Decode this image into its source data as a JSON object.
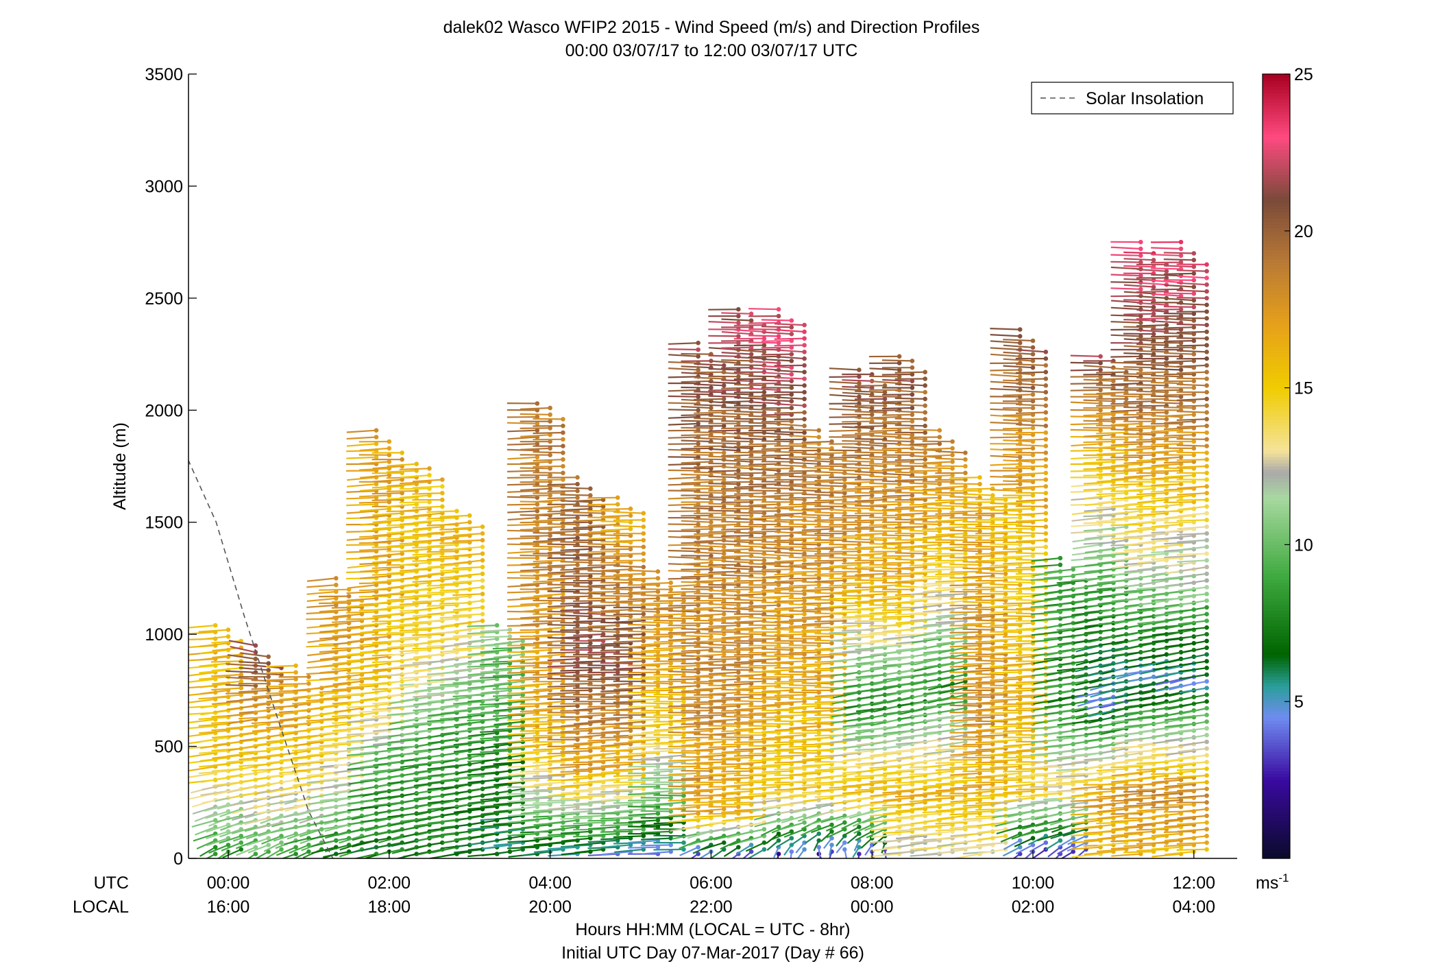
{
  "chart_data": {
    "type": "wind_barb_profile",
    "title": "dalek02 Wasco WFIP2 2015 - Wind Speed (m/s) and Direction Profiles",
    "subtitle": "00:00 03/07/17 to 12:00 03/07/17  UTC",
    "ylabel": "Altitude (m)",
    "xlabel": "Hours HH:MM  (LOCAL = UTC - 8hr)",
    "xlabel2": "Initial UTC Day 07-Mar-2017 (Day # 66)",
    "xlim_hours": [
      -0.5,
      12.1
    ],
    "ylim": [
      0,
      3500
    ],
    "yticks": [
      0,
      500,
      1000,
      1500,
      2000,
      2500,
      3000,
      3500
    ],
    "xticks_hours": [
      0,
      2,
      4,
      6,
      8,
      10,
      12
    ],
    "xtick_labels_utc": [
      "00:00",
      "02:00",
      "04:00",
      "06:00",
      "08:00",
      "10:00",
      "12:00"
    ],
    "xtick_labels_local": [
      "16:00",
      "18:00",
      "20:00",
      "22:00",
      "00:00",
      "02:00",
      "04:00"
    ],
    "row_label_utc": "UTC",
    "row_label_local": "LOCAL",
    "legend": {
      "entries": [
        "Solar Insolation"
      ],
      "placement": "top-right"
    },
    "solar_insolation": {
      "hours": [
        -0.5,
        -0.15,
        0.2,
        0.6,
        1.0,
        1.3
      ],
      "altitude": [
        1780,
        1500,
        1080,
        640,
        210,
        0
      ]
    },
    "colorbar": {
      "range": [
        0,
        25
      ],
      "ticks": [
        5,
        10,
        15,
        20,
        25
      ],
      "unit": "ms",
      "unit_superscript": "-1",
      "stops": [
        {
          "v": 0,
          "c": "#0a0a2a"
        },
        {
          "v": 2.5,
          "c": "#3a0aa0"
        },
        {
          "v": 4.5,
          "c": "#6f8cf0"
        },
        {
          "v": 5.5,
          "c": "#2a9e9a"
        },
        {
          "v": 6.5,
          "c": "#006400"
        },
        {
          "v": 9,
          "c": "#3faa3f"
        },
        {
          "v": 11.5,
          "c": "#a8d8a0"
        },
        {
          "v": 12.3,
          "c": "#a9a9a9"
        },
        {
          "v": 13,
          "c": "#f5e39a"
        },
        {
          "v": 15,
          "c": "#f0cc00"
        },
        {
          "v": 17,
          "c": "#e6a11a"
        },
        {
          "v": 19,
          "c": "#b97a35"
        },
        {
          "v": 21,
          "c": "#7a4a3a"
        },
        {
          "v": 23,
          "c": "#ff4a80"
        },
        {
          "v": 25,
          "c": "#a80020"
        }
      ]
    },
    "profiles": [
      {
        "t": 0.0,
        "top": 1060,
        "layers": [
          [
            0,
            8,
            210
          ],
          [
            400,
            15,
            250
          ],
          [
            700,
            16,
            255
          ],
          [
            1000,
            16,
            260
          ]
        ]
      },
      {
        "t": 0.5,
        "top": 950,
        "layers": [
          [
            0,
            9,
            215
          ],
          [
            400,
            15,
            252
          ],
          [
            700,
            18,
            255
          ],
          [
            950,
            22,
            300
          ]
        ]
      },
      {
        "t": 1.0,
        "top": 860,
        "layers": [
          [
            0,
            8,
            220
          ],
          [
            400,
            15,
            252
          ],
          [
            700,
            17,
            258
          ],
          [
            860,
            17,
            265
          ]
        ]
      },
      {
        "t": 1.5,
        "top": 1250,
        "layers": [
          [
            0,
            7,
            230
          ],
          [
            300,
            12,
            250
          ],
          [
            700,
            16,
            255
          ],
          [
            1250,
            18,
            262
          ]
        ]
      },
      {
        "t": 2.0,
        "top": 1910,
        "layers": [
          [
            0,
            7,
            235
          ],
          [
            400,
            9,
            250
          ],
          [
            800,
            16,
            258
          ],
          [
            1910,
            17,
            265
          ]
        ]
      },
      {
        "t": 2.5,
        "top": 1780,
        "layers": [
          [
            0,
            7,
            240
          ],
          [
            500,
            9,
            250
          ],
          [
            1000,
            15,
            258
          ],
          [
            1780,
            16,
            265
          ]
        ]
      },
      {
        "t": 3.0,
        "top": 1570,
        "layers": [
          [
            0,
            7,
            245
          ],
          [
            600,
            9,
            252
          ],
          [
            1100,
            15,
            258
          ],
          [
            1570,
            16,
            262
          ]
        ]
      },
      {
        "t": 3.5,
        "top": 1060,
        "layers": [
          [
            0,
            6,
            250
          ],
          [
            500,
            8,
            255
          ],
          [
            1060,
            11,
            260
          ]
        ]
      },
      {
        "t": 4.0,
        "top": 2050,
        "layers": [
          [
            0,
            6,
            255
          ],
          [
            500,
            16,
            262
          ],
          [
            1200,
            18,
            265
          ],
          [
            2050,
            19,
            268
          ]
        ]
      },
      {
        "t": 4.5,
        "top": 1700,
        "layers": [
          [
            0,
            5,
            258
          ],
          [
            400,
            17,
            262
          ],
          [
            900,
            21,
            268
          ],
          [
            1700,
            19,
            270
          ]
        ]
      },
      {
        "t": 5.0,
        "top": 1620,
        "layers": [
          [
            0,
            4.5,
            262
          ],
          [
            400,
            16,
            262
          ],
          [
            900,
            21,
            268
          ],
          [
            1620,
            16,
            270
          ]
        ]
      },
      {
        "t": 5.5,
        "top": 1280,
        "layers": [
          [
            0,
            4.5,
            265
          ],
          [
            500,
            14,
            265
          ],
          [
            900,
            17,
            268
          ],
          [
            1280,
            18,
            270
          ]
        ]
      },
      {
        "t": 6.0,
        "top": 2300,
        "layers": [
          [
            0,
            2,
            200
          ],
          [
            200,
            17,
            265
          ],
          [
            800,
            18,
            268
          ],
          [
            1600,
            19,
            270
          ],
          [
            2300,
            21,
            272
          ]
        ]
      },
      {
        "t": 6.5,
        "top": 2470,
        "layers": [
          [
            0,
            2,
            190
          ],
          [
            200,
            16,
            265
          ],
          [
            800,
            18,
            268
          ],
          [
            1600,
            19,
            272
          ],
          [
            2470,
            22,
            275
          ]
        ]
      },
      {
        "t": 7.0,
        "top": 2460,
        "layers": [
          [
            0,
            2,
            180
          ],
          [
            300,
            15,
            265
          ],
          [
            900,
            17,
            268
          ],
          [
            1700,
            19,
            272
          ],
          [
            2460,
            23,
            275
          ]
        ]
      },
      {
        "t": 7.5,
        "top": 1910,
        "layers": [
          [
            0,
            2,
            170
          ],
          [
            300,
            15,
            262
          ],
          [
            900,
            17,
            268
          ],
          [
            1910,
            19,
            272
          ]
        ]
      },
      {
        "t": 8.0,
        "top": 2200,
        "layers": [
          [
            0,
            2,
            170
          ],
          [
            300,
            16,
            262
          ],
          [
            700,
            8,
            245
          ],
          [
            1200,
            16,
            268
          ],
          [
            2200,
            21,
            275
          ]
        ]
      },
      {
        "t": 8.5,
        "top": 2260,
        "layers": [
          [
            0,
            12,
            250
          ],
          [
            300,
            16,
            262
          ],
          [
            700,
            8,
            240
          ],
          [
            1200,
            16,
            268
          ],
          [
            2260,
            21,
            275
          ]
        ]
      },
      {
        "t": 9.0,
        "top": 1910,
        "layers": [
          [
            0,
            12,
            250
          ],
          [
            300,
            16,
            262
          ],
          [
            800,
            8,
            240
          ],
          [
            1300,
            15,
            265
          ],
          [
            1910,
            19,
            272
          ]
        ]
      },
      {
        "t": 9.5,
        "top": 1700,
        "layers": [
          [
            0,
            12,
            250
          ],
          [
            300,
            16,
            262
          ],
          [
            700,
            18,
            268
          ],
          [
            1700,
            16,
            270
          ]
        ]
      },
      {
        "t": 10.0,
        "top": 2360,
        "layers": [
          [
            0,
            2,
            200
          ],
          [
            300,
            15,
            262
          ],
          [
            700,
            16,
            265
          ],
          [
            1400,
            15,
            268
          ],
          [
            2360,
            21,
            275
          ]
        ]
      },
      {
        "t": 10.5,
        "top": 1340,
        "layers": [
          [
            0,
            2,
            200
          ],
          [
            300,
            14,
            262
          ],
          [
            700,
            8,
            245
          ],
          [
            1340,
            9,
            255
          ]
        ]
      },
      {
        "t": 11.0,
        "top": 2260,
        "layers": [
          [
            0,
            15,
            255
          ],
          [
            300,
            17,
            262
          ],
          [
            700,
            5,
            235
          ],
          [
            1200,
            9,
            250
          ],
          [
            2260,
            21,
            275
          ]
        ]
      },
      {
        "t": 11.5,
        "top": 2750,
        "layers": [
          [
            0,
            16,
            258
          ],
          [
            300,
            18,
            262
          ],
          [
            800,
            5,
            240
          ],
          [
            1300,
            12,
            255
          ],
          [
            2000,
            19,
            270
          ],
          [
            2750,
            23,
            275
          ]
        ]
      },
      {
        "t": 12.0,
        "top": 2750,
        "layers": [
          [
            0,
            16,
            258
          ],
          [
            300,
            18,
            262
          ],
          [
            800,
            5,
            240
          ],
          [
            1300,
            12,
            255
          ],
          [
            2000,
            19,
            270
          ],
          [
            2750,
            23,
            275
          ]
        ]
      }
    ]
  }
}
